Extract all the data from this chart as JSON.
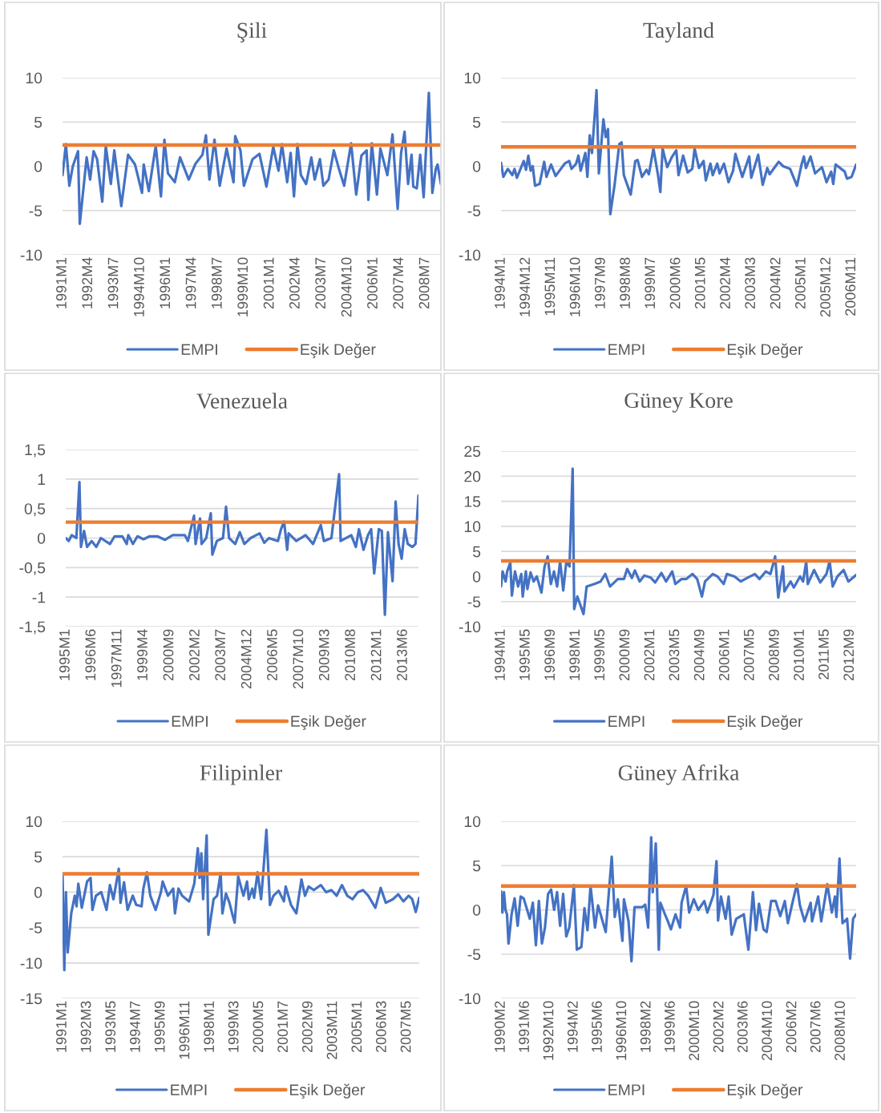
{
  "chart_data": [
    {
      "type": "line",
      "title": "Şili",
      "xlim": [
        "1991-01",
        "2009-04"
      ],
      "ylim": [
        -10,
        10
      ],
      "yticks": [
        -10,
        -5,
        0,
        5,
        10
      ],
      "grid": "y",
      "legend": "bottom",
      "xticks": [
        {
          "value": "1991-01",
          "label": "1991M1"
        },
        {
          "value": "1992-04",
          "label": "1992M4"
        },
        {
          "value": "1993-07",
          "label": "1993M7"
        },
        {
          "value": "1994-10",
          "label": "1994M10"
        },
        {
          "value": "1996-01",
          "label": "1996M1"
        },
        {
          "value": "1997-04",
          "label": "1997M4"
        },
        {
          "value": "1998-07",
          "label": "1998M7"
        },
        {
          "value": "1999-10",
          "label": "1999M10"
        },
        {
          "value": "2001-01",
          "label": "2001M1"
        },
        {
          "value": "2002-04",
          "label": "2002M4"
        },
        {
          "value": "2003-07",
          "label": "2003M7"
        },
        {
          "value": "2004-10",
          "label": "2004M10"
        },
        {
          "value": "2006-01",
          "label": "2006M1"
        },
        {
          "value": "2007-04",
          "label": "2007M4"
        },
        {
          "value": "2008-07",
          "label": "2008M7"
        }
      ],
      "series": [
        {
          "name": "EMPI",
          "color": "#4472c4",
          "x": [
            "1991-01",
            "1991-03",
            "1991-05",
            "1991-07",
            "1991-10",
            "1991-11",
            "1992-03",
            "1992-05",
            "1992-07",
            "1992-09",
            "1992-12",
            "1993-02",
            "1993-05",
            "1993-07",
            "1993-11",
            "1994-03",
            "1994-07",
            "1994-11",
            "1994-12",
            "1995-03",
            "1995-07",
            "1995-10",
            "1995-12",
            "1996-02",
            "1996-06",
            "1996-09",
            "1997-02",
            "1997-06",
            "1997-10",
            "1997-12",
            "1998-02",
            "1998-05",
            "1998-08",
            "1998-12",
            "1999-04",
            "1999-05",
            "1999-08",
            "1999-10",
            "2000-03",
            "2000-07",
            "2000-11",
            "2001-03",
            "2001-06",
            "2001-08",
            "2001-11",
            "2002-01",
            "2002-03",
            "2002-05",
            "2002-07",
            "2002-10",
            "2003-01",
            "2003-03",
            "2003-06",
            "2003-08",
            "2003-11",
            "2004-02",
            "2004-05",
            "2004-08",
            "2004-12",
            "2005-03",
            "2005-06",
            "2005-09",
            "2005-10",
            "2005-12",
            "2006-03",
            "2006-05",
            "2006-09",
            "2006-12",
            "2007-03",
            "2007-05",
            "2007-07",
            "2007-09",
            "2007-11",
            "2007-12",
            "2008-02",
            "2008-04",
            "2008-06",
            "2008-09",
            "2008-11",
            "2009-01",
            "2009-02",
            "2009-04"
          ],
          "values": [
            -1,
            2.5,
            -2.2,
            0,
            1.7,
            -6.5,
            1,
            -1.5,
            1.7,
            0.8,
            -4,
            2.3,
            -2,
            1.8,
            -4.5,
            1.3,
            0.2,
            -3,
            0.2,
            -2.8,
            2.3,
            -3.4,
            3,
            -0.8,
            -1.8,
            1,
            -1.5,
            0.3,
            1.3,
            3.5,
            -1.5,
            3,
            -2.2,
            2,
            -1.8,
            3.4,
            1.8,
            -2.2,
            0.8,
            1.4,
            -2.3,
            2.2,
            -0.5,
            2.5,
            -1.8,
            1.5,
            -3.4,
            2.5,
            -1,
            -2,
            1,
            -1.5,
            0.8,
            -2.2,
            -1.5,
            1.8,
            -0.3,
            -2.2,
            2.6,
            -3.2,
            1.2,
            1.8,
            -3.8,
            2.6,
            -3.2,
            2,
            -1,
            3.6,
            -4.8,
            1.5,
            3.9,
            -2,
            1.3,
            -2.3,
            -2.5,
            1.3,
            -3.5,
            8.3,
            -3,
            -0.3,
            0.2,
            -2
          ]
        },
        {
          "name": "Eşik Değer",
          "color": "#ed7d31",
          "x": [
            "1991-01",
            "2009-04"
          ],
          "values": [
            2.4,
            2.4
          ]
        }
      ]
    },
    {
      "type": "line",
      "title": "Tayland",
      "xlim": [
        "1994-01",
        "2007-01"
      ],
      "ylim": [
        -10,
        10
      ],
      "yticks": [
        -10,
        -5,
        0,
        5,
        10
      ],
      "grid": "y",
      "legend": "bottom",
      "xticks": [
        {
          "value": "1994-01",
          "label": "1994M1"
        },
        {
          "value": "1994-12",
          "label": "1994M12"
        },
        {
          "value": "1995-11",
          "label": "1995M11"
        },
        {
          "value": "1996-10",
          "label": "1996M10"
        },
        {
          "value": "1997-09",
          "label": "1997M9"
        },
        {
          "value": "1998-08",
          "label": "1998M8"
        },
        {
          "value": "1999-07",
          "label": "1999M7"
        },
        {
          "value": "2000-06",
          "label": "2000M6"
        },
        {
          "value": "2001-05",
          "label": "2001M5"
        },
        {
          "value": "2002-04",
          "label": "2002M4"
        },
        {
          "value": "2003-03",
          "label": "2003M3"
        },
        {
          "value": "2004-02",
          "label": "2004M2"
        },
        {
          "value": "2005-01",
          "label": "2005M1"
        },
        {
          "value": "2005-12",
          "label": "2005M12"
        },
        {
          "value": "2006-11",
          "label": "2006M11"
        }
      ],
      "series": [
        {
          "name": "EMPI",
          "color": "#4472c4",
          "x": [
            "1994-01",
            "1994-02",
            "1994-04",
            "1994-06",
            "1994-07",
            "1994-08",
            "1994-11",
            "1994-12",
            "1995-01",
            "1995-02",
            "1995-03",
            "1995-04",
            "1995-06",
            "1995-08",
            "1995-09",
            "1995-11",
            "1996-01",
            "1996-05",
            "1996-07",
            "1996-08",
            "1996-10",
            "1996-11",
            "1996-12",
            "1997-02",
            "1997-03",
            "1997-04",
            "1997-05",
            "1997-07",
            "1997-08",
            "1997-10",
            "1997-11",
            "1997-12",
            "1998-01",
            "1998-03",
            "1998-05",
            "1998-06",
            "1998-07",
            "1998-10",
            "1998-12",
            "1999-01",
            "1999-03",
            "1999-05",
            "1999-06",
            "1999-08",
            "1999-10",
            "1999-11",
            "1999-12",
            "2000-02",
            "2000-04",
            "2000-06",
            "2000-07",
            "2000-09",
            "2000-11",
            "2001-01",
            "2001-02",
            "2001-04",
            "2001-06",
            "2001-07",
            "2001-09",
            "2001-10",
            "2001-12",
            "2002-01",
            "2002-03",
            "2002-05",
            "2002-07",
            "2002-08",
            "2002-11",
            "2003-02",
            "2003-03",
            "2003-06",
            "2003-08",
            "2003-10",
            "2003-11",
            "2004-03",
            "2004-05",
            "2004-08",
            "2004-11",
            "2005-01",
            "2005-02",
            "2005-03",
            "2005-05",
            "2005-07",
            "2005-10",
            "2005-12",
            "2006-02",
            "2006-03",
            "2006-04",
            "2006-08",
            "2006-09",
            "2006-11",
            "2007-01"
          ],
          "values": [
            0.4,
            -1.2,
            -0.3,
            -1,
            -0.3,
            -1.3,
            0.6,
            -0.4,
            1.2,
            -0.5,
            0,
            -2.2,
            -2,
            0.5,
            -1.2,
            0.2,
            -1.1,
            0.3,
            0.6,
            -0.3,
            0.3,
            1.2,
            -0.5,
            1.5,
            -1.2,
            3.5,
            1.5,
            8.6,
            -0.8,
            5.3,
            3.3,
            4.2,
            -5.4,
            -2,
            2.5,
            2.7,
            -1,
            -3.2,
            0.6,
            0.7,
            -1.2,
            -0.4,
            -0.9,
            2,
            -1,
            -2.9,
            2,
            -0.1,
            1,
            1.8,
            -1,
            1.2,
            -0.7,
            -0.3,
            2,
            -0.2,
            0.6,
            -1.6,
            0.3,
            -1,
            0.3,
            -0.8,
            0.3,
            -1.8,
            -0.5,
            1.4,
            -1.2,
            1.1,
            -1.3,
            1.3,
            -2.1,
            -0.2,
            -0.9,
            0.5,
            0,
            -0.3,
            -2.2,
            0.2,
            1.1,
            -0.2,
            1.1,
            -0.8,
            -0.1,
            -1.8,
            -0.6,
            -2,
            0.2,
            -0.6,
            -1.4,
            -1.2,
            0.2
          ]
        },
        {
          "name": "Eşik Değer",
          "color": "#ed7d31",
          "x": [
            "1994-01",
            "2007-01"
          ],
          "values": [
            2.2,
            2.2
          ]
        }
      ]
    },
    {
      "type": "line",
      "title": "Venezuela",
      "xlim": [
        "1995-01",
        "2014-04"
      ],
      "ylim": [
        -1.5,
        1.5
      ],
      "yticks": [
        {
          "value": -1.5,
          "label": "-1,5"
        },
        -1,
        {
          "value": -0.5,
          "label": "-0,5"
        },
        0,
        {
          "value": 0.5,
          "label": "0,5"
        },
        1,
        {
          "value": 1.5,
          "label": "1,5"
        }
      ],
      "grid": "y",
      "legend": "bottom",
      "xticks": [
        {
          "value": "1995-01",
          "label": "1995M1"
        },
        {
          "value": "1996-06",
          "label": "1996M6"
        },
        {
          "value": "1997-11",
          "label": "1997M11"
        },
        {
          "value": "1999-04",
          "label": "1999M4"
        },
        {
          "value": "2000-09",
          "label": "2000M9"
        },
        {
          "value": "2002-02",
          "label": "2002M2"
        },
        {
          "value": "2003-07",
          "label": "2003M7"
        },
        {
          "value": "2004-12",
          "label": "2004M12"
        },
        {
          "value": "2006-05",
          "label": "2006M5"
        },
        {
          "value": "2007-10",
          "label": "2007M10"
        },
        {
          "value": "2009-03",
          "label": "2009M3"
        },
        {
          "value": "2010-08",
          "label": "2010M8"
        },
        {
          "value": "2012-01",
          "label": "2012M1"
        },
        {
          "value": "2013-06",
          "label": "2013M6"
        }
      ],
      "series": [
        {
          "name": "EMPI",
          "color": "#4472c4",
          "x": [
            "1995-01",
            "1995-03",
            "1995-05",
            "1995-08",
            "1995-10",
            "1995-11",
            "1996-01",
            "1996-03",
            "1996-06",
            "1996-09",
            "1996-12",
            "1997-06",
            "1997-09",
            "1998-02",
            "1998-05",
            "1998-06",
            "1998-09",
            "1998-12",
            "1999-04",
            "1999-08",
            "2000-01",
            "2000-06",
            "2000-11",
            "2001-07",
            "2001-09",
            "2002-01",
            "2002-02",
            "2002-05",
            "2002-06",
            "2002-09",
            "2002-12",
            "2003-01",
            "2003-04",
            "2003-08",
            "2003-10",
            "2003-12",
            "2004-04",
            "2004-07",
            "2004-10",
            "2005-02",
            "2005-08",
            "2005-11",
            "2006-02",
            "2006-08",
            "2006-10",
            "2006-12",
            "2007-02",
            "2007-03",
            "2007-08",
            "2008-02",
            "2008-07",
            "2008-12",
            "2009-02",
            "2009-07",
            "2009-12",
            "2010-01",
            "2010-08",
            "2010-11",
            "2011-01",
            "2011-04",
            "2011-07",
            "2011-09",
            "2011-11",
            "2012-02",
            "2012-04",
            "2012-06",
            "2012-08",
            "2012-11",
            "2013-01",
            "2013-03",
            "2013-05",
            "2013-07",
            "2013-09",
            "2013-12",
            "2014-02",
            "2014-04"
          ],
          "values": [
            0,
            -0.05,
            0.05,
            0,
            0.95,
            -0.15,
            0.12,
            -0.15,
            -0.05,
            -0.15,
            0,
            -0.1,
            0.03,
            0.03,
            -0.1,
            0.05,
            -0.1,
            0.03,
            -0.02,
            0.03,
            0.03,
            -0.03,
            0.05,
            0.05,
            -0.05,
            0.38,
            -0.1,
            0.33,
            -0.1,
            0,
            0.42,
            -0.28,
            -0.05,
            0,
            0.53,
            0,
            -0.1,
            0.1,
            -0.1,
            0,
            0.08,
            -0.08,
            0,
            -0.05,
            0.15,
            0.28,
            -0.2,
            0.08,
            -0.05,
            0.05,
            -0.1,
            0.22,
            -0.05,
            0,
            1.08,
            -0.05,
            0.05,
            -0.15,
            0.15,
            -0.2,
            0.05,
            0.15,
            -0.6,
            0.15,
            0.12,
            -1.3,
            0.1,
            -0.73,
            0.62,
            -0.1,
            -0.35,
            0.15,
            -0.1,
            -0.15,
            -0.1,
            0.72
          ]
        },
        {
          "name": "Eşik Değer",
          "color": "#ed7d31",
          "x": [
            "1995-01",
            "2014-04"
          ],
          "values": [
            0.27,
            0.27
          ]
        }
      ]
    },
    {
      "type": "line",
      "title": "Güney Kore",
      "xlim": [
        "1994-01",
        "2013-01"
      ],
      "ylim": [
        -10,
        25
      ],
      "yticks": [
        -10,
        -5,
        0,
        5,
        10,
        15,
        20,
        25
      ],
      "grid": "y",
      "legend": "bottom",
      "xticks": [
        {
          "value": "1994-01",
          "label": "1994M1"
        },
        {
          "value": "1995-05",
          "label": "1995M5"
        },
        {
          "value": "1996-09",
          "label": "1996M9"
        },
        {
          "value": "1998-01",
          "label": "1998M1"
        },
        {
          "value": "1999-05",
          "label": "1999M5"
        },
        {
          "value": "2000-09",
          "label": "2000M9"
        },
        {
          "value": "2002-01",
          "label": "2002M1"
        },
        {
          "value": "2003-05",
          "label": "2003M5"
        },
        {
          "value": "2004-09",
          "label": "2004M9"
        },
        {
          "value": "2006-01",
          "label": "2006M1"
        },
        {
          "value": "2007-05",
          "label": "2007M5"
        },
        {
          "value": "2008-09",
          "label": "2008M9"
        },
        {
          "value": "2010-01",
          "label": "2010M1"
        },
        {
          "value": "2011-05",
          "label": "2011M5"
        },
        {
          "value": "2012-09",
          "label": "2012M9"
        }
      ],
      "series": [
        {
          "name": "EMPI",
          "color": "#4472c4",
          "x": [
            "1994-01",
            "1994-02",
            "1994-04",
            "1994-05",
            "1994-07",
            "1994-08",
            "1994-10",
            "1994-12",
            "1995-02",
            "1995-03",
            "1995-05",
            "1995-06",
            "1995-08",
            "1995-10",
            "1995-12",
            "1996-03",
            "1996-05",
            "1996-07",
            "1996-09",
            "1996-11",
            "1997-01",
            "1997-03",
            "1997-05",
            "1997-07",
            "1997-09",
            "1997-11",
            "1997-12",
            "1998-02",
            "1998-06",
            "1998-08",
            "1999-01",
            "1999-05",
            "1999-08",
            "1999-11",
            "2000-04",
            "2000-08",
            "2000-10",
            "2001-01",
            "2001-03",
            "2001-06",
            "2001-09",
            "2002-01",
            "2002-04",
            "2002-08",
            "2002-11",
            "2003-03",
            "2003-05",
            "2003-09",
            "2003-12",
            "2004-04",
            "2004-07",
            "2004-10",
            "2004-12",
            "2005-05",
            "2005-08",
            "2005-12",
            "2006-02",
            "2006-07",
            "2006-11",
            "2007-03",
            "2007-08",
            "2007-11",
            "2008-03",
            "2008-06",
            "2008-09",
            "2008-11",
            "2009-02",
            "2009-03",
            "2009-07",
            "2009-09",
            "2010-01",
            "2010-03",
            "2010-05",
            "2010-06",
            "2010-10",
            "2011-02",
            "2011-06",
            "2011-08",
            "2011-10",
            "2012-01",
            "2012-05",
            "2012-08",
            "2013-01"
          ],
          "values": [
            -2,
            1,
            -1,
            1,
            2.8,
            -3.8,
            1,
            -2,
            0.5,
            -4,
            1,
            -2.5,
            0.8,
            -1,
            0,
            -3.2,
            2,
            4,
            -1.5,
            1,
            -2,
            3,
            -2.8,
            3,
            2,
            21.5,
            -6.5,
            -4,
            -7.5,
            -2,
            -1.5,
            -1,
            0.5,
            -2,
            -0.5,
            -0.5,
            1.5,
            -0.3,
            1.2,
            -1,
            0.2,
            -0.2,
            -1.2,
            0.7,
            -1,
            1,
            -1.5,
            -0.5,
            -0.5,
            0.5,
            -0.5,
            -4,
            -1,
            0.5,
            0,
            -1.5,
            0.5,
            0,
            -1,
            -0.3,
            0.5,
            -0.5,
            1,
            0.5,
            4,
            -4.2,
            2,
            -3,
            -1,
            -2.2,
            0,
            -1,
            3,
            -1.5,
            1.3,
            -1.2,
            0.5,
            3.1,
            -2,
            0,
            1.3,
            -1,
            0.3
          ]
        },
        {
          "name": "Eşik Değer",
          "color": "#ed7d31",
          "x": [
            "1994-01",
            "2013-01"
          ],
          "values": [
            3.1,
            3.1
          ]
        }
      ]
    },
    {
      "type": "line",
      "title": "Filipinler",
      "xlim": [
        "1991-01",
        "2007-12"
      ],
      "ylim": [
        -15,
        10
      ],
      "yticks": [
        -15,
        -10,
        -5,
        0,
        5,
        10
      ],
      "grid": "y",
      "legend": "bottom",
      "xticks": [
        {
          "value": "1991-01",
          "label": "1991M1"
        },
        {
          "value": "1992-03",
          "label": "1992M3"
        },
        {
          "value": "1993-05",
          "label": "1993M5"
        },
        {
          "value": "1994-07",
          "label": "1994M7"
        },
        {
          "value": "1995-09",
          "label": "1995M9"
        },
        {
          "value": "1996-11",
          "label": "1996M11"
        },
        {
          "value": "1998-01",
          "label": "1998M1"
        },
        {
          "value": "1999-03",
          "label": "1999M3"
        },
        {
          "value": "2000-05",
          "label": "2000M5"
        },
        {
          "value": "2001-07",
          "label": "2001M7"
        },
        {
          "value": "2002-09",
          "label": "2002M9"
        },
        {
          "value": "2003-11",
          "label": "2003M11"
        },
        {
          "value": "2005-01",
          "label": "2005M1"
        },
        {
          "value": "2006-03",
          "label": "2006M3"
        },
        {
          "value": "2007-05",
          "label": "2007M5"
        }
      ],
      "series": [
        {
          "name": "EMPI",
          "color": "#4472c4",
          "x": [
            "1991-01",
            "1991-02",
            "1991-03",
            "1991-04",
            "1991-06",
            "1991-08",
            "1991-09",
            "1991-10",
            "1991-12",
            "1992-03",
            "1992-05",
            "1992-06",
            "1992-08",
            "1992-11",
            "1993-02",
            "1993-04",
            "1993-06",
            "1993-09",
            "1993-10",
            "1993-12",
            "1994-02",
            "1994-05",
            "1994-07",
            "1994-10",
            "1994-11",
            "1995-01",
            "1995-03",
            "1995-06",
            "1995-09",
            "1995-10",
            "1996-01",
            "1996-04",
            "1996-05",
            "1996-07",
            "1996-09",
            "1997-01",
            "1997-04",
            "1997-06",
            "1997-07",
            "1997-08",
            "1997-09",
            "1997-11",
            "1997-12",
            "1998-03",
            "1998-05",
            "1998-07",
            "1998-08",
            "1998-10",
            "1998-12",
            "1999-02",
            "1999-03",
            "1999-05",
            "1999-08",
            "1999-10",
            "1999-11",
            "2000-01",
            "2000-02",
            "2000-04",
            "2000-06",
            "2000-07",
            "2000-09",
            "2000-11",
            "2001-01",
            "2001-04",
            "2001-07",
            "2001-08",
            "2001-11",
            "2002-02",
            "2002-05",
            "2002-07",
            "2002-09",
            "2002-12",
            "2003-04",
            "2003-07",
            "2003-10",
            "2004-01",
            "2004-04",
            "2004-07",
            "2004-10",
            "2005-01",
            "2005-04",
            "2005-07",
            "2005-11",
            "2006-02",
            "2006-05",
            "2006-09",
            "2006-12",
            "2007-03",
            "2007-06",
            "2007-08",
            "2007-10",
            "2007-12"
          ],
          "values": [
            2.5,
            -11,
            0,
            -8.5,
            -3,
            -0.5,
            -2,
            1.2,
            -2.2,
            1.5,
            2,
            -2.5,
            -0.5,
            0,
            -2.5,
            1,
            -1,
            3.3,
            -1.5,
            1.4,
            -2.5,
            -0.5,
            -1.8,
            -2,
            0.5,
            2.8,
            -0.5,
            -2.5,
            0,
            1.5,
            -0.5,
            0.5,
            -3,
            0.5,
            -0.5,
            -1.3,
            1.2,
            6.2,
            2,
            5.5,
            -1,
            8,
            -6,
            -1,
            -0.5,
            2.7,
            -3,
            -0.2,
            -1.5,
            -3.5,
            -4.3,
            2.2,
            -0.5,
            1.5,
            -1,
            0.5,
            -0.8,
            2.8,
            -1,
            2,
            8.8,
            -1.8,
            -0.5,
            0.2,
            -1.3,
            0.8,
            -1.8,
            -3,
            1.8,
            -0.5,
            0.8,
            0.3,
            1,
            0,
            0.3,
            -0.5,
            1,
            -0.5,
            -1,
            0,
            0.3,
            -0.5,
            -2.2,
            0.6,
            -1.5,
            -1,
            -0.3,
            -1.3,
            -0.5,
            -1,
            -2.8,
            -0.8
          ]
        },
        {
          "name": "Eşik Değer",
          "color": "#ed7d31",
          "x": [
            "1991-01",
            "2007-12"
          ],
          "values": [
            2.6,
            2.6
          ]
        }
      ]
    },
    {
      "type": "line",
      "title": "Güney Afrika",
      "xlim": [
        "1990-02",
        "2009-08"
      ],
      "ylim": [
        -10,
        10
      ],
      "yticks": [
        -10,
        -5,
        0,
        5,
        10
      ],
      "grid": "y",
      "legend": "bottom",
      "xticks": [
        {
          "value": "1990-02",
          "label": "1990M2"
        },
        {
          "value": "1991-06",
          "label": "1991M6"
        },
        {
          "value": "1992-10",
          "label": "1992M10"
        },
        {
          "value": "1994-02",
          "label": "1994M2"
        },
        {
          "value": "1995-06",
          "label": "1995M6"
        },
        {
          "value": "1996-10",
          "label": "1996M10"
        },
        {
          "value": "1998-02",
          "label": "1998M2"
        },
        {
          "value": "1999-06",
          "label": "1999M6"
        },
        {
          "value": "2000-10",
          "label": "2000M10"
        },
        {
          "value": "2002-02",
          "label": "2002M2"
        },
        {
          "value": "2003-06",
          "label": "2003M6"
        },
        {
          "value": "2004-10",
          "label": "2004M10"
        },
        {
          "value": "2006-02",
          "label": "2006M2"
        },
        {
          "value": "2007-06",
          "label": "2007M6"
        },
        {
          "value": "2008-10",
          "label": "2008M10"
        }
      ],
      "series": [
        {
          "name": "EMPI",
          "color": "#4472c4",
          "x": [
            "1990-02",
            "1990-03",
            "1990-04",
            "1990-05",
            "1990-06",
            "1990-07",
            "1990-09",
            "1990-11",
            "1991-01",
            "1991-03",
            "1991-05",
            "1991-09",
            "1991-11",
            "1992-01",
            "1992-03",
            "1992-05",
            "1992-07",
            "1992-09",
            "1992-11",
            "1993-01",
            "1993-03",
            "1993-05",
            "1993-07",
            "1993-09",
            "1993-11",
            "1994-02",
            "1994-04",
            "1994-07",
            "1994-09",
            "1994-11",
            "1995-01",
            "1995-04",
            "1995-06",
            "1995-11",
            "1996-03",
            "1996-05",
            "1996-07",
            "1996-10",
            "1996-11",
            "1997-02",
            "1997-04",
            "1997-06",
            "1997-11",
            "1998-01",
            "1998-03",
            "1998-05",
            "1998-06",
            "1998-08",
            "1998-10",
            "1998-11",
            "1999-02",
            "1999-04",
            "1999-06",
            "1999-09",
            "1999-12",
            "2000-01",
            "2000-04",
            "2000-06",
            "2000-09",
            "2000-12",
            "2001-04",
            "2001-06",
            "2001-10",
            "2001-12",
            "2002-01",
            "2002-03",
            "2002-06",
            "2002-08",
            "2002-10",
            "2003-01",
            "2003-06",
            "2003-09",
            "2003-12",
            "2004-02",
            "2004-04",
            "2004-07",
            "2004-09",
            "2004-12",
            "2005-03",
            "2005-06",
            "2005-09",
            "2005-11",
            "2006-02",
            "2006-05",
            "2006-07",
            "2006-10",
            "2007-02",
            "2007-03",
            "2007-07",
            "2007-09",
            "2008-01",
            "2008-04",
            "2008-06",
            "2008-07",
            "2008-09",
            "2008-11",
            "2009-02",
            "2009-04",
            "2009-06",
            "2009-08"
          ],
          "values": [
            2.1,
            -0.3,
            2,
            0,
            -0.5,
            -3.8,
            -0.5,
            1.3,
            -1.8,
            1.5,
            1.3,
            -1,
            0.8,
            -4,
            1,
            -3.8,
            -2,
            1.8,
            2.3,
            0,
            2,
            -1.8,
            1.8,
            -3,
            -2,
            2.8,
            -4.5,
            -4.2,
            0.2,
            -2.3,
            2.7,
            -2,
            0.5,
            -2.5,
            6,
            -0.8,
            1.2,
            -3.5,
            1.2,
            -1.3,
            -5.8,
            0.3,
            0.3,
            0.6,
            -2,
            8.2,
            2,
            7.5,
            -4.5,
            0.8,
            -0.5,
            -1.3,
            -2.2,
            -0.5,
            -2,
            0.8,
            2.7,
            -0.3,
            1.2,
            0,
            1,
            -0.3,
            1.7,
            5.5,
            -1.2,
            1.5,
            -1,
            1.5,
            -2.8,
            -1,
            -0.5,
            -4.5,
            2,
            -2.3,
            0.7,
            -2.2,
            -2.5,
            1,
            1,
            -0.7,
            1,
            -1.5,
            0.8,
            2.9,
            0.5,
            -1.3,
            0.8,
            -1.3,
            1.5,
            -1.3,
            2.9,
            -0.3,
            1.5,
            -0.8,
            5.8,
            -1.5,
            -1,
            -5.5,
            -1,
            -0.5
          ]
        },
        {
          "name": "Eşik Değer",
          "color": "#ed7d31",
          "x": [
            "1990-02",
            "2009-08"
          ],
          "values": [
            2.7,
            2.7
          ]
        }
      ]
    }
  ]
}
